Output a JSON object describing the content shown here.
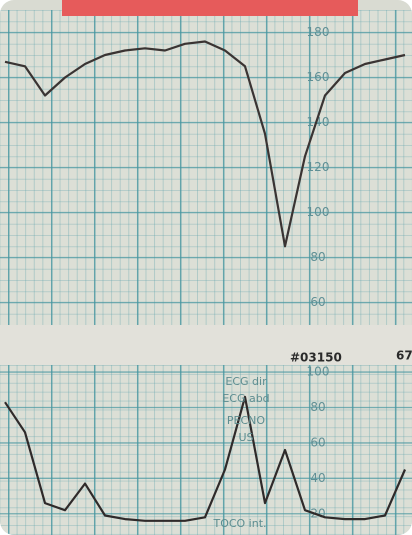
{
  "chart_data": [
    {
      "type": "line",
      "color": "#3a3433",
      "grid": true,
      "ylim": [
        50,
        190
      ],
      "yticks": [
        60,
        80,
        100,
        120,
        140,
        160,
        180
      ],
      "values": [
        167,
        165,
        152,
        160,
        166,
        170,
        172,
        173,
        172,
        175,
        176,
        172,
        165,
        135,
        85,
        125,
        152,
        162,
        166,
        168,
        170
      ]
    },
    {
      "type": "line",
      "color": "#2f2a2a",
      "grid": true,
      "ylim": [
        8,
        104
      ],
      "yticks": [
        20,
        40,
        60,
        80,
        100
      ],
      "values": [
        83,
        66,
        26,
        22,
        37,
        19,
        17,
        16,
        16,
        16,
        18,
        45,
        86,
        26,
        56,
        22,
        18,
        17,
        17,
        19,
        45
      ],
      "annotations": [
        "#03150",
        "67",
        "ECG dir",
        "ECG abd",
        "PECNO",
        "US",
        "TOCO int."
      ]
    }
  ]
}
